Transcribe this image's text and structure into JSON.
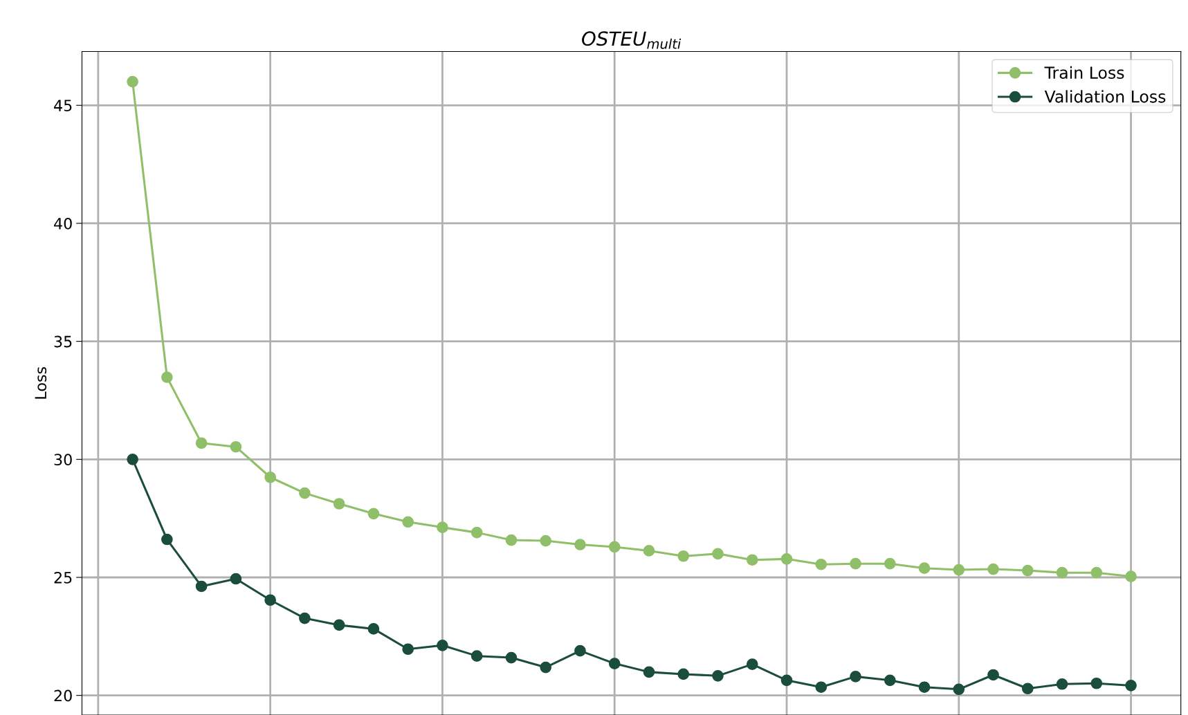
{
  "chart_data": {
    "type": "line",
    "title": "OSTEU$_{multi}$",
    "ylabel": "Loss",
    "categories": [
      null,
      null,
      null,
      null,
      null,
      null,
      null,
      null,
      null,
      null,
      null,
      null,
      null,
      null,
      null,
      null,
      null,
      null,
      null,
      null,
      null,
      null,
      null,
      null,
      null,
      null,
      null,
      null,
      null,
      null
    ],
    "series": [
      {
        "name": "Train Loss",
        "color": "#8fbf68",
        "values": [
          46.0,
          33.48,
          30.69,
          30.53,
          29.24,
          28.57,
          28.12,
          27.7,
          27.35,
          27.12,
          26.9,
          26.58,
          26.55,
          26.39,
          26.29,
          26.13,
          25.9,
          26.0,
          25.74,
          25.78,
          25.55,
          25.58,
          25.58,
          25.39,
          25.32,
          25.35,
          25.29,
          25.2,
          25.2,
          25.04
        ]
      },
      {
        "name": "Validation Loss",
        "color": "#1b4d3e",
        "values": [
          30.0,
          26.61,
          24.62,
          24.94,
          24.04,
          23.27,
          22.98,
          22.82,
          21.96,
          22.12,
          21.67,
          21.6,
          21.19,
          21.89,
          21.35,
          20.99,
          20.9,
          20.83,
          21.32,
          20.64,
          20.35,
          20.8,
          20.64,
          20.35,
          20.26,
          20.87,
          20.29,
          20.48,
          20.51,
          20.42
        ]
      }
    ],
    "ylim": [
      19.17,
      47.28
    ],
    "yticks": [
      20,
      25,
      30,
      35,
      40,
      45
    ],
    "grid": true,
    "legend": "top right",
    "marker": "circle",
    "line_style": "solid",
    "tick_labels": "y"
  }
}
